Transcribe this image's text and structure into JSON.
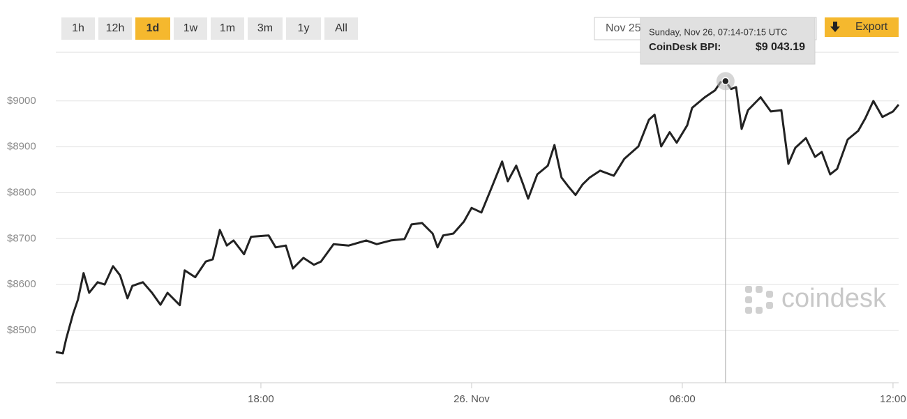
{
  "toolbar": {
    "ranges": [
      "1h",
      "12h",
      "1d",
      "1w",
      "1m",
      "3m",
      "1y",
      "All"
    ],
    "active_range": "1d",
    "date_from": "Nov 25",
    "export": "Export"
  },
  "watermark": "coindesk",
  "chart_data": {
    "type": "line",
    "color": "#222222",
    "grid": true,
    "x": [
      -11.84,
      -11.64,
      -11.54,
      -11.35,
      -11.21,
      -11.05,
      -10.89,
      -10.65,
      -10.45,
      -10.21,
      -10.01,
      -9.8,
      -9.66,
      -9.36,
      -9.1,
      -8.86,
      -8.66,
      -8.31,
      -8.17,
      -7.87,
      -7.57,
      -7.37,
      -7.17,
      -6.97,
      -6.78,
      -6.48,
      -6.28,
      -5.78,
      -5.58,
      -5.29,
      -5.09,
      -4.79,
      -4.49,
      -4.29,
      -3.93,
      -3.5,
      -3.0,
      -2.7,
      -2.3,
      -1.91,
      -1.71,
      -1.41,
      -1.11,
      -0.97,
      -0.81,
      -0.52,
      -0.22,
      0,
      0.28,
      0.58,
      0.87,
      1.03,
      1.27,
      1.47,
      1.61,
      1.87,
      2.17,
      2.36,
      2.56,
      2.76,
      2.96,
      3.16,
      3.36,
      3.66,
      4.05,
      4.35,
      4.75,
      5.05,
      5.21,
      5.4,
      5.64,
      5.84,
      6.14,
      6.28,
      6.64,
      6.93,
      7.09,
      7.23,
      7.39,
      7.53,
      7.69,
      7.87,
      8.23,
      8.52,
      8.82,
      9.02,
      9.22,
      9.52,
      9.78,
      9.97,
      10.21,
      10.41,
      10.71,
      11.01,
      11.21,
      11.44,
      11.7,
      12.0,
      12.16
    ],
    "values": [
      8453,
      8450,
      8483,
      8536,
      8567,
      8625,
      8582,
      8605,
      8600,
      8640,
      8620,
      8570,
      8597,
      8605,
      8582,
      8556,
      8582,
      8555,
      8631,
      8616,
      8650,
      8655,
      8719,
      8685,
      8696,
      8666,
      8704,
      8707,
      8681,
      8685,
      8635,
      8658,
      8643,
      8650,
      8688,
      8685,
      8696,
      8688,
      8696,
      8699,
      8731,
      8734,
      8711,
      8681,
      8707,
      8711,
      8737,
      8767,
      8757,
      8813,
      8868,
      8825,
      8859,
      8818,
      8787,
      8840,
      8859,
      8904,
      8833,
      8813,
      8795,
      8818,
      8833,
      8848,
      8837,
      8874,
      8901,
      8959,
      8970,
      8901,
      8932,
      8909,
      8947,
      8985,
      9008,
      9023,
      9041,
      9043.19,
      9026,
      9030,
      8939,
      8980,
      9008,
      8977,
      8980,
      8863,
      8898,
      8919,
      8878,
      8889,
      8840,
      8852,
      8916,
      8935,
      8962,
      9000,
      8965,
      8977,
      8992
    ],
    "xlim": [
      -11.84,
      12.16
    ],
    "xticks": [
      {
        "value": -6,
        "label": "18:00"
      },
      {
        "value": 0,
        "label": "26. Nov"
      },
      {
        "value": 6,
        "label": "06:00"
      },
      {
        "value": 12,
        "label": "12:00"
      }
    ],
    "ylim": [
      8386,
      9106
    ],
    "yticks": [
      {
        "value": 8500,
        "label": "$8500"
      },
      {
        "value": 8600,
        "label": "$8600"
      },
      {
        "value": 8700,
        "label": "$8700"
      },
      {
        "value": 8800,
        "label": "$8800"
      },
      {
        "value": 8900,
        "label": "$8900"
      },
      {
        "value": 9000,
        "label": "$9000"
      }
    ],
    "tooltip": {
      "header": "Sunday, Nov 26, 07:14-07:15 UTC",
      "name": "CoinDesk BPI:",
      "value_label": "$9 043.19",
      "x": 7.23,
      "value": 9043.19
    }
  }
}
